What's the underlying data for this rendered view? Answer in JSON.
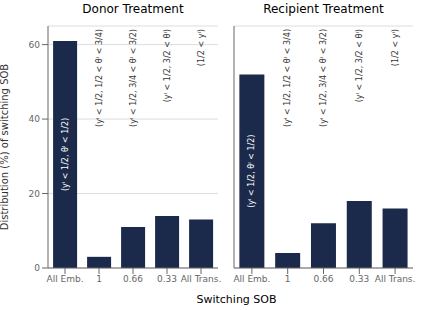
{
  "chart_data": [
    {
      "type": "bar",
      "title": "Donor Treatment",
      "xlabel": "Switching SOB",
      "ylabel": "Distribution (%) of switching SOB",
      "categories": [
        "All Emb.",
        "1",
        "0.66",
        "0.33",
        "All Trans."
      ],
      "values": [
        61,
        3,
        11,
        14,
        13
      ],
      "annotations": [
        "(yᴵ < 1/2, θᴵ < 1/2)",
        "(yᴵ < 1/2, 1/2 < θᴵ < 3/4)",
        "(yᴵ < 1/2, 3/4 < θᴵ < 3/2)",
        "(yᴵ < 1/2,  3/2 < θᴵ)",
        "(1/2 < yᴵ)"
      ],
      "color": "#1B2A4A",
      "ylim": [
        0,
        65
      ],
      "yticks": [
        0,
        20,
        40,
        60
      ],
      "grid": true
    },
    {
      "type": "bar",
      "title": "Recipient Treatment",
      "categories": [
        "All Emb.",
        "1",
        "0.66",
        "0.33",
        "All Trans."
      ],
      "values": [
        52,
        4,
        12,
        18,
        16
      ],
      "annotations": [
        "(yᴵ < 1/2, θᴵ < 1/2)",
        "(yᴵ < 1/2, 1/2 < θᴵ < 3/4)",
        "(yᴵ < 1/2, 3/4 < θᴵ < 3/2)",
        "(yᴵ < 1/2,  3/2 < θᴵ)",
        "(1/2 < yᴵ)"
      ],
      "color": "#1B2A4A",
      "ylim": [
        0,
        65
      ],
      "yticks": [
        0,
        20,
        40,
        60
      ],
      "grid": true,
      "tick_labels": "x"
    }
  ]
}
